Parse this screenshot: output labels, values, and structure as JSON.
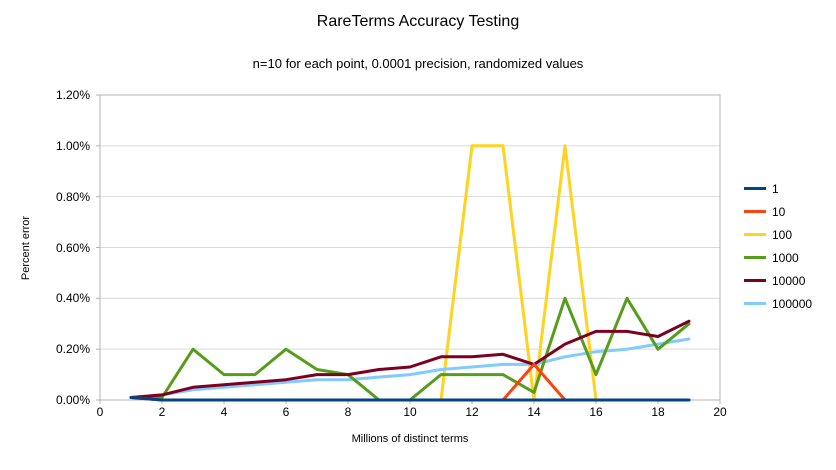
{
  "title": "RareTerms Accuracy Testing",
  "subtitle": "n=10 for each point, 0.0001 precision, randomized values",
  "chart_data": {
    "type": "line",
    "title": "RareTerms Accuracy Testing",
    "subtitle": "n=10 for each point, 0.0001 precision, randomized values",
    "xlabel": "Millions of distinct terms",
    "ylabel": "Percent error",
    "xlim": [
      0,
      20
    ],
    "ylim": [
      0,
      1.2
    ],
    "grid": "horizontal",
    "legend_position": "right",
    "x_ticks": [
      0,
      2,
      4,
      6,
      8,
      10,
      12,
      14,
      16,
      18,
      20
    ],
    "x_tick_labels": [
      "0",
      "2",
      "4",
      "6",
      "8",
      "10",
      "12",
      "14",
      "16",
      "18",
      "20"
    ],
    "y_ticks": [
      0,
      0.2,
      0.4,
      0.6,
      0.8,
      1.0,
      1.2
    ],
    "y_tick_labels": [
      "0.00%",
      "0.20%",
      "0.40%",
      "0.60%",
      "0.80%",
      "1.00%",
      "1.20%"
    ],
    "x": [
      1,
      2,
      3,
      4,
      5,
      6,
      7,
      8,
      9,
      10,
      11,
      12,
      13,
      14,
      15,
      16,
      17,
      18,
      19
    ],
    "series": [
      {
        "name": "1",
        "color": "#004586",
        "values": [
          0.01,
          0,
          0,
          0,
          0,
          0,
          0,
          0,
          0,
          0,
          0,
          0,
          0,
          0,
          0,
          0,
          0,
          0,
          0
        ]
      },
      {
        "name": "10",
        "color": "#ff420e",
        "values": [
          0.01,
          0,
          0,
          0,
          0,
          0,
          0,
          0,
          0,
          0,
          0,
          0,
          0,
          0.14,
          0,
          0,
          0,
          0,
          0
        ]
      },
      {
        "name": "100",
        "color": "#ffd320",
        "values": [
          0.01,
          0,
          0,
          0,
          0,
          0,
          0,
          0,
          0,
          0,
          0,
          1.0,
          1.0,
          0,
          1.0,
          0,
          0,
          0,
          0
        ]
      },
      {
        "name": "1000",
        "color": "#579d1c",
        "values": [
          0.01,
          0.01,
          0.2,
          0.1,
          0.1,
          0.2,
          0.12,
          0.1,
          0,
          0,
          0.1,
          0.1,
          0.1,
          0.03,
          0.4,
          0.1,
          0.4,
          0.2,
          0.3
        ]
      },
      {
        "name": "10000",
        "color": "#7e0021",
        "values": [
          0.01,
          0.02,
          0.05,
          0.06,
          0.07,
          0.08,
          0.1,
          0.1,
          0.12,
          0.13,
          0.17,
          0.17,
          0.18,
          0.14,
          0.22,
          0.27,
          0.27,
          0.25,
          0.31
        ]
      },
      {
        "name": "100000",
        "color": "#83caff",
        "values": [
          0.01,
          0.02,
          0.04,
          0.05,
          0.06,
          0.07,
          0.08,
          0.08,
          0.09,
          0.1,
          0.12,
          0.13,
          0.14,
          0.14,
          0.17,
          0.19,
          0.2,
          0.22,
          0.24
        ]
      }
    ],
    "draw_order": [
      "100",
      "100000",
      "1000",
      "10000",
      "10",
      "1"
    ],
    "colors": {
      "gridline": "#d9d9d9",
      "axis_frame": "#b3b3b3",
      "tick": "#b3b3b3",
      "background": "#ffffff"
    }
  }
}
